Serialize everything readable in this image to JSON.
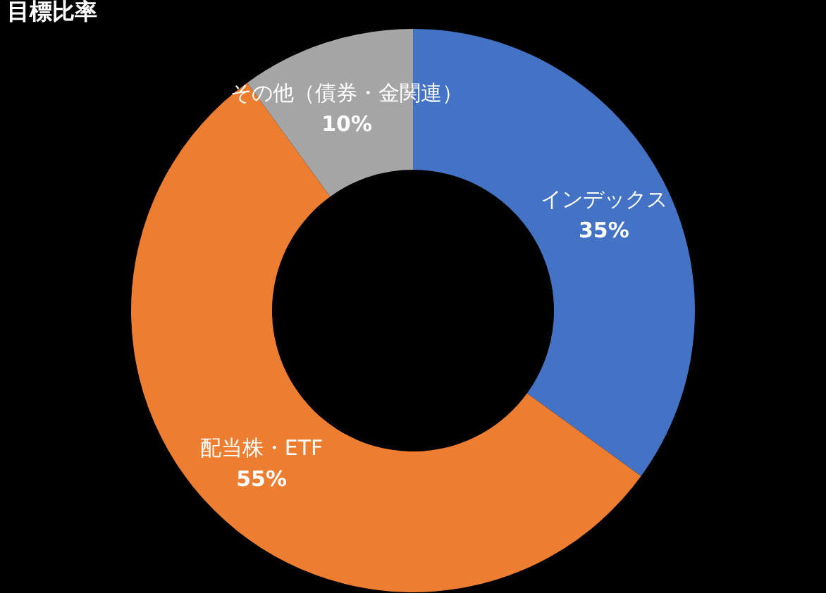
{
  "chart_data": {
    "type": "donut",
    "title": "目標比率",
    "categories": [
      "インデックス",
      "配当株・ETF",
      "その他（債券・金関連）"
    ],
    "values": [
      35,
      55,
      10
    ],
    "colors": [
      "#4472c4",
      "#ed7d31",
      "#a5a5a5"
    ],
    "value_labels": [
      "35%",
      "55%",
      "10%"
    ],
    "legend": false
  }
}
